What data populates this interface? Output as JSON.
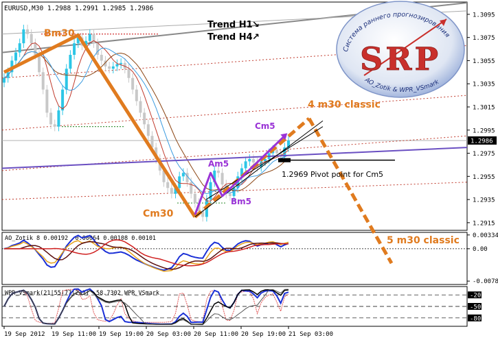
{
  "header": {
    "symbol_info": "EURUSD,M30  1.2988 1.2991 1.2985 1.2986",
    "trend_h1": "Trend H1",
    "trend_h4": "Trend H4",
    "trend_h1_arrow": "↘",
    "trend_h4_arrow": "↗"
  },
  "logo": {
    "letters": "SRP",
    "arc_top": "Система раннего прогнозирования",
    "arc_bottom": "AO_Zotik & WPR_VSmark"
  },
  "wave_labels": {
    "bm30": "Bm30",
    "cm30": "Cm30",
    "am5": "Am5",
    "bm5": "Bm5",
    "cm5": "Cm5",
    "m30_4": "4 m30 classic",
    "m30_5": "5 m30 classic"
  },
  "pivot": {
    "text": "1.2969  Pivot point for Cm5",
    "value": 1.2969
  },
  "colors": {
    "orange": "#e07b1f",
    "purple": "#9a33d6",
    "up_candle": "#2cc6e6",
    "down_candle": "#c8c8c8",
    "red_lines": "#c0392b",
    "gray_band": "#808080",
    "ma_purple": "#6a4fc2"
  },
  "chart_data": {
    "type": "line",
    "main": {
      "ylim": [
        1.2909,
        1.3105
      ],
      "y_ticks": [
        "1.3095",
        "1.3075",
        "1.3055",
        "1.3035",
        "1.3015",
        "1.2995",
        "1.2975",
        "1.2955",
        "1.2935",
        "1.2915"
      ],
      "y_tick_values": [
        1.3095,
        1.3075,
        1.3055,
        1.3035,
        1.3015,
        1.2995,
        1.2975,
        1.2955,
        1.2935,
        1.2915
      ],
      "current_price": "1.2986",
      "current_price_value": 1.2986,
      "close": [
        1.304,
        1.3045,
        1.3055,
        1.3062,
        1.307,
        1.3082,
        1.3078,
        1.307,
        1.306,
        1.3045,
        1.303,
        1.301,
        1.3,
        1.2998,
        1.3012,
        1.303,
        1.3048,
        1.306,
        1.307,
        1.3075,
        1.3068,
        1.3072,
        1.3078,
        1.307,
        1.306,
        1.3055,
        1.305,
        1.3048,
        1.305,
        1.3052,
        1.3053,
        1.3048,
        1.304,
        1.303,
        1.302,
        1.301,
        1.3,
        1.299,
        1.298,
        1.297,
        1.296,
        1.295,
        1.2945,
        1.294,
        1.2945,
        1.2955,
        1.2958,
        1.295,
        1.294,
        1.2932,
        1.2925,
        1.292,
        1.2935,
        1.295,
        1.296,
        1.2958,
        1.2948,
        1.294,
        1.2938,
        1.2945,
        1.2955,
        1.2962,
        1.2968,
        1.297,
        1.2967,
        1.2963,
        1.2968,
        1.297,
        1.2975,
        1.2978,
        1.2975,
        1.2972,
        1.298,
        1.2986
      ]
    },
    "ao": {
      "label": "AO_Zotik  8 0.00192 -0.00064 0.00108 0.00101",
      "ylim": [
        -0.0085,
        0.0038
      ],
      "y_ticks": [
        "0.00334",
        "0.00",
        "-0.00785"
      ],
      "y_tick_values": [
        0.00334,
        0.0,
        -0.00785
      ]
    },
    "wpr": {
      "label": "WPR_VSmark(21|55|77|233)  -58.7302  WPR_VSmark",
      "ylim": [
        -100,
        0
      ],
      "y_ticks": [
        "-20",
        "-50",
        "-80"
      ],
      "y_tick_values": [
        -20,
        -50,
        -80
      ]
    },
    "x_ticks": [
      "19 Sep 2012",
      "19 Sep 11:00",
      "19 Sep 19:00",
      "20 Sep 03:00",
      "20 Sep 11:00",
      "20 Sep 19:00",
      "21 Sep 03:00"
    ]
  }
}
